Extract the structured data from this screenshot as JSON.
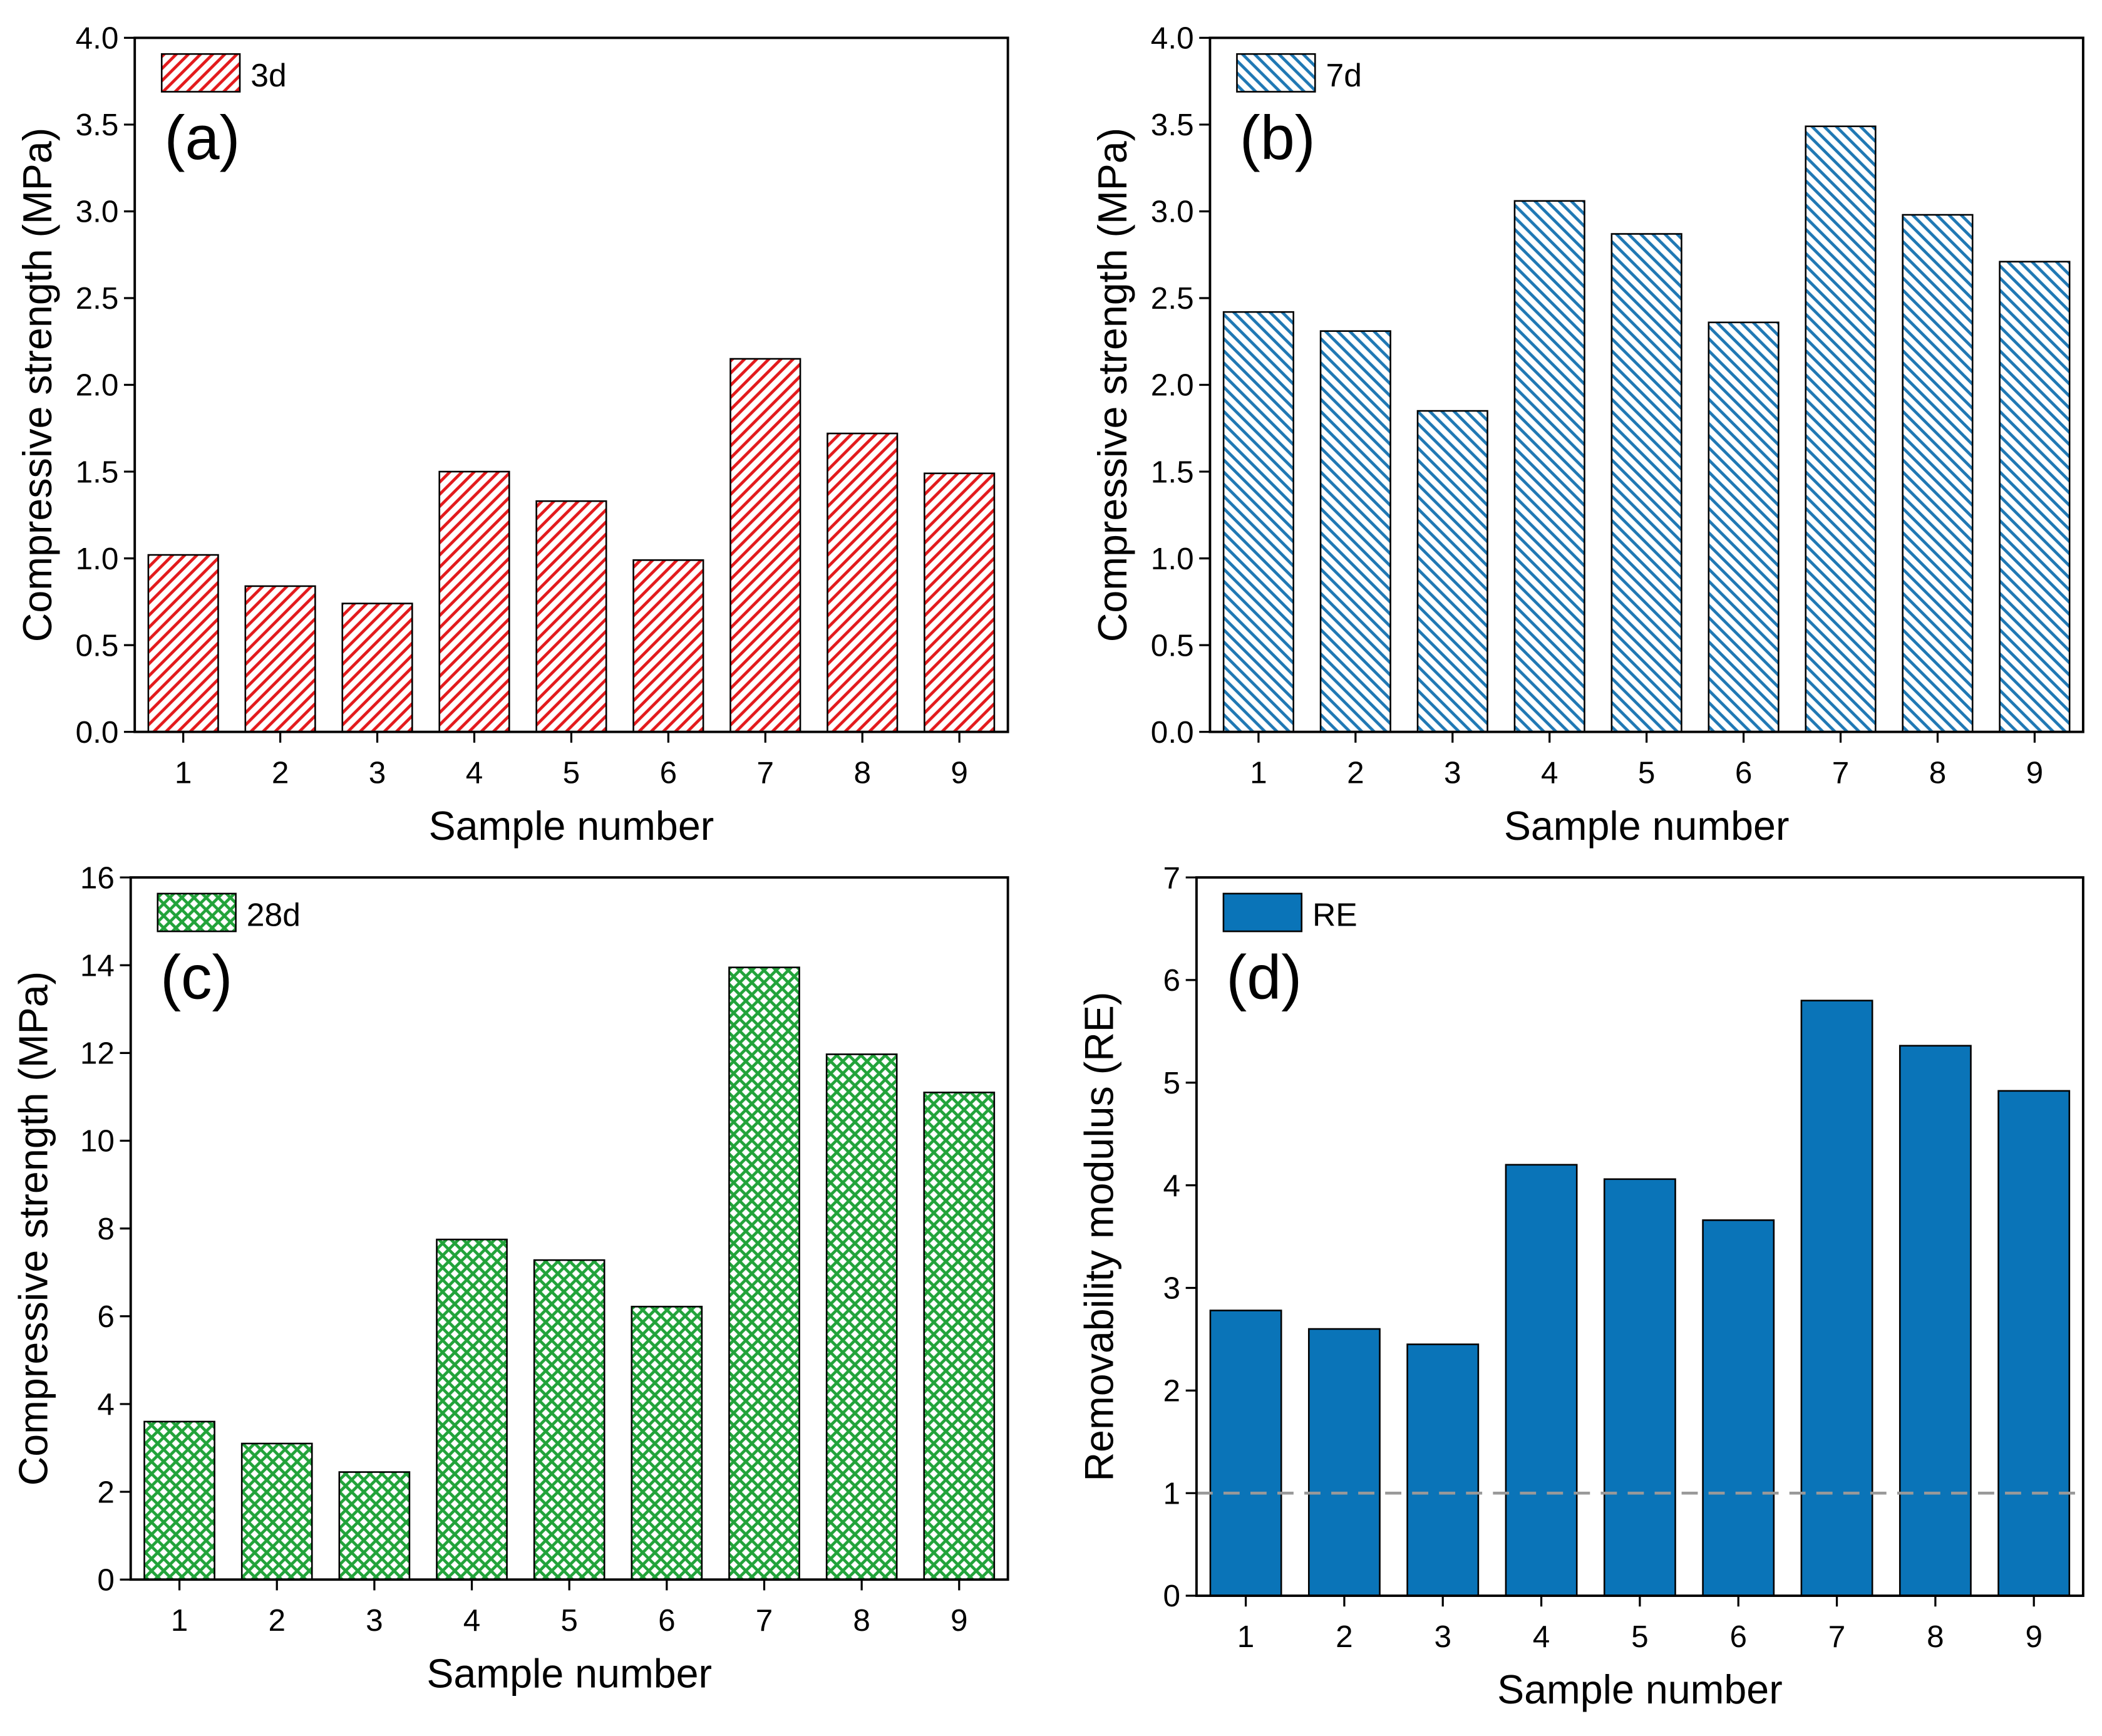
{
  "chart_data": [
    {
      "type": "bar",
      "annotation": "(a)",
      "x_label": "Sample number",
      "y_label": "Compressive strength  (MPa)",
      "categories": [
        "1",
        "2",
        "3",
        "4",
        "5",
        "6",
        "7",
        "8",
        "9"
      ],
      "series": [
        {
          "name": "3d",
          "color": "#e31a1c",
          "pattern": "forward-diagonal",
          "values": [
            1.02,
            0.84,
            0.74,
            1.5,
            1.33,
            0.99,
            2.15,
            1.72,
            1.49
          ]
        }
      ],
      "ylim": [
        0,
        4
      ],
      "yticks": [
        {
          "value": 0,
          "label": "0.0"
        },
        0.5,
        {
          "value": 1,
          "label": "1.0"
        },
        1.5,
        {
          "value": 2,
          "label": "2.0"
        },
        2.5,
        {
          "value": 3,
          "label": "3.0"
        },
        3.5,
        {
          "value": 4,
          "label": "4.0"
        }
      ]
    },
    {
      "type": "bar",
      "annotation": "(b)",
      "x_label": "Sample number",
      "y_label": "Compressive strength  (MPa)",
      "categories": [
        "1",
        "2",
        "3",
        "4",
        "5",
        "6",
        "7",
        "8",
        "9"
      ],
      "series": [
        {
          "name": "7d",
          "color": "#1f78b4",
          "pattern": "back-diagonal",
          "values": [
            2.42,
            2.31,
            1.85,
            3.06,
            2.87,
            2.36,
            3.49,
            2.98,
            2.71
          ]
        }
      ],
      "ylim": [
        0,
        4
      ],
      "yticks": [
        {
          "value": 0,
          "label": "0.0"
        },
        0.5,
        {
          "value": 1,
          "label": "1.0"
        },
        1.5,
        {
          "value": 2,
          "label": "2.0"
        },
        2.5,
        {
          "value": 3,
          "label": "3.0"
        },
        3.5,
        {
          "value": 4,
          "label": "4.0"
        }
      ]
    },
    {
      "type": "bar",
      "annotation": "(c)",
      "x_label": "Sample number",
      "y_label": "Compressive strength  (MPa)",
      "categories": [
        "1",
        "2",
        "3",
        "4",
        "5",
        "6",
        "7",
        "8",
        "9"
      ],
      "series": [
        {
          "name": "28d",
          "color": "#22a33a",
          "pattern": "crosshatch",
          "values": [
            3.6,
            3.1,
            2.45,
            7.75,
            7.28,
            6.22,
            13.95,
            11.97,
            11.1
          ]
        }
      ],
      "ylim": [
        0,
        16
      ],
      "yticks": [
        0,
        2,
        4,
        6,
        8,
        10,
        12,
        14,
        16
      ]
    },
    {
      "type": "bar",
      "annotation": "(d)",
      "x_label": "Sample number",
      "y_label": "Removability modulus (RE)",
      "categories": [
        "1",
        "2",
        "3",
        "4",
        "5",
        "6",
        "7",
        "8",
        "9"
      ],
      "series": [
        {
          "name": "RE",
          "color": "#0a74b8",
          "pattern": "solid",
          "values": [
            2.78,
            2.6,
            2.45,
            4.2,
            4.06,
            3.66,
            5.8,
            5.36,
            4.92
          ]
        }
      ],
      "ylim": [
        0,
        7
      ],
      "yticks": [
        0,
        1,
        2,
        3,
        4,
        5,
        6,
        7
      ],
      "reference_line": 1,
      "reference_color": "#999999"
    }
  ]
}
